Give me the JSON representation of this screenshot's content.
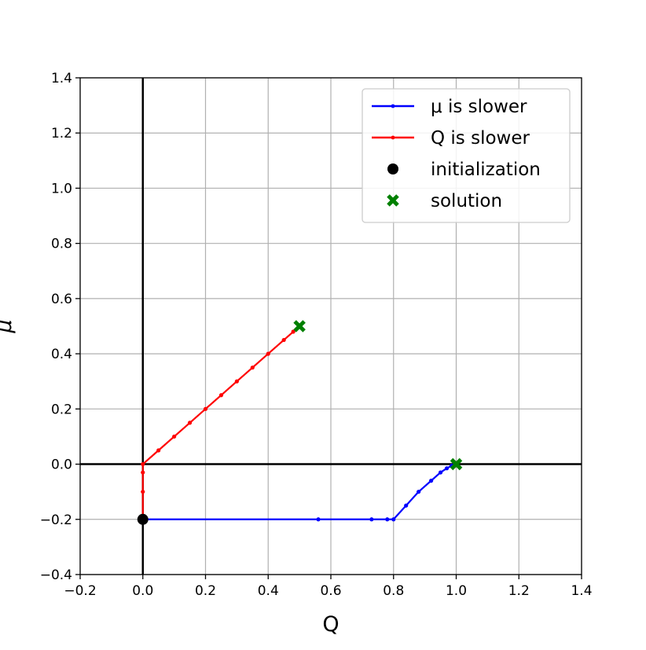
{
  "chart_data": {
    "type": "line",
    "title": "",
    "xlabel": "Q",
    "ylabel": "μ",
    "xlim": [
      -0.2,
      1.4
    ],
    "ylim": [
      -0.4,
      1.4
    ],
    "grid": true,
    "legend_position": "top-right",
    "x_ticks": [
      -0.2,
      0.0,
      0.2,
      0.4,
      0.6,
      0.8,
      1.0,
      1.2,
      1.4
    ],
    "y_ticks": [
      -0.4,
      -0.2,
      0.0,
      0.2,
      0.4,
      0.6,
      0.8,
      1.0,
      1.2,
      1.4
    ],
    "x_tick_labels": [
      "−0.2",
      "0.0",
      "0.2",
      "0.4",
      "0.6",
      "0.8",
      "1.0",
      "1.2",
      "1.4"
    ],
    "y_tick_labels": [
      "−0.4",
      "−0.2",
      "0.0",
      "0.2",
      "0.4",
      "0.6",
      "0.8",
      "1.0",
      "1.2",
      "1.4"
    ],
    "reference_lines": [
      {
        "orientation": "vertical",
        "value": 0.0,
        "color": "#000000"
      },
      {
        "orientation": "horizontal",
        "value": 0.0,
        "color": "#000000"
      }
    ],
    "series": [
      {
        "name": "μ is slower",
        "color": "#0000ff",
        "marker": "dot",
        "points": [
          [
            0.0,
            -0.2
          ],
          [
            0.56,
            -0.2
          ],
          [
            0.73,
            -0.2
          ],
          [
            0.78,
            -0.2
          ],
          [
            0.8,
            -0.2
          ],
          [
            0.84,
            -0.15
          ],
          [
            0.88,
            -0.1
          ],
          [
            0.92,
            -0.06
          ],
          [
            0.95,
            -0.03
          ],
          [
            0.97,
            -0.015
          ],
          [
            0.985,
            -0.006
          ],
          [
            0.995,
            -0.002
          ],
          [
            1.0,
            0.0
          ]
        ]
      },
      {
        "name": "Q is slower",
        "color": "#ff0000",
        "marker": "dot",
        "points": [
          [
            0.0,
            -0.2
          ],
          [
            0.0,
            -0.1
          ],
          [
            0.0,
            -0.03
          ],
          [
            0.0,
            0.0
          ],
          [
            0.05,
            0.05
          ],
          [
            0.1,
            0.1
          ],
          [
            0.15,
            0.15
          ],
          [
            0.2,
            0.2
          ],
          [
            0.25,
            0.25
          ],
          [
            0.3,
            0.3
          ],
          [
            0.35,
            0.35
          ],
          [
            0.4,
            0.4
          ],
          [
            0.45,
            0.45
          ],
          [
            0.48,
            0.48
          ],
          [
            0.5,
            0.5
          ]
        ]
      }
    ],
    "markers": [
      {
        "name": "initialization",
        "shape": "circle",
        "color": "#000000",
        "points": [
          [
            0.0,
            -0.2
          ]
        ]
      },
      {
        "name": "solution",
        "shape": "x",
        "color": "#008000",
        "points": [
          [
            0.5,
            0.5
          ],
          [
            1.0,
            0.0
          ]
        ]
      }
    ]
  }
}
